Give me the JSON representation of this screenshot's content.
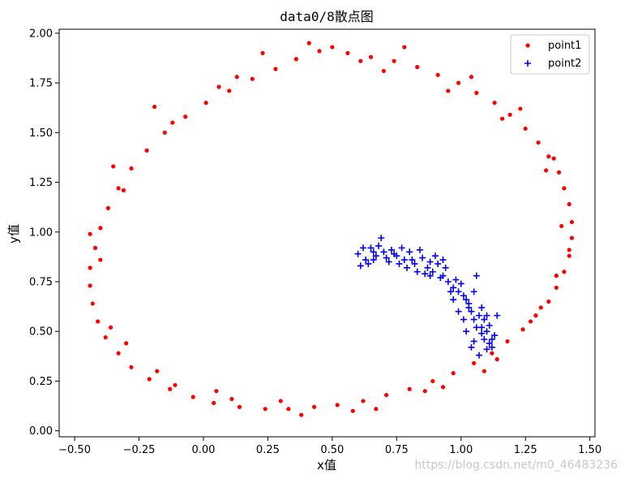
{
  "chart_data": {
    "type": "scatter",
    "title": "data0/8散点图",
    "xlabel": "x值",
    "ylabel": "y值",
    "xlim": [
      -0.56,
      1.52
    ],
    "ylim": [
      -0.03,
      2.02
    ],
    "xticks": [
      -0.5,
      -0.25,
      0.0,
      0.25,
      0.5,
      0.75,
      1.0,
      1.25,
      1.5
    ],
    "xtick_labels": [
      "−0.50",
      "−0.25",
      "0.00",
      "0.25",
      "0.50",
      "0.75",
      "1.00",
      "1.25",
      "1.50"
    ],
    "yticks": [
      0.0,
      0.25,
      0.5,
      0.75,
      1.0,
      1.25,
      1.5,
      1.75,
      2.0
    ],
    "ytick_labels": [
      "0.00",
      "0.25",
      "0.50",
      "0.75",
      "1.00",
      "1.25",
      "1.50",
      "1.75",
      "2.00"
    ],
    "grid": false,
    "legend_position": "top-right",
    "series": [
      {
        "name": "point1",
        "marker": "circle",
        "color": "#ff0000",
        "points": [
          [
            0.45,
            1.91
          ],
          [
            0.56,
            1.9
          ],
          [
            0.65,
            1.88
          ],
          [
            0.74,
            1.86
          ],
          [
            0.83,
            1.83
          ],
          [
            0.91,
            1.79
          ],
          [
            0.99,
            1.75
          ],
          [
            1.06,
            1.7
          ],
          [
            1.13,
            1.65
          ],
          [
            1.19,
            1.59
          ],
          [
            1.25,
            1.52
          ],
          [
            1.3,
            1.45
          ],
          [
            1.34,
            1.38
          ],
          [
            1.38,
            1.3
          ],
          [
            1.4,
            1.22
          ],
          [
            1.42,
            1.14
          ],
          [
            1.43,
            1.05
          ],
          [
            1.43,
            0.97
          ],
          [
            1.42,
            0.88
          ],
          [
            1.4,
            0.8
          ],
          [
            1.37,
            0.72
          ],
          [
            1.34,
            0.65
          ],
          [
            1.29,
            0.58
          ],
          [
            1.24,
            0.51
          ],
          [
            1.18,
            0.45
          ],
          [
            1.12,
            0.39
          ],
          [
            1.05,
            0.34
          ],
          [
            0.97,
            0.29
          ],
          [
            0.89,
            0.25
          ],
          [
            0.8,
            0.21
          ],
          [
            0.71,
            0.18
          ],
          [
            0.62,
            0.15
          ],
          [
            0.52,
            0.13
          ],
          [
            0.43,
            0.12
          ],
          [
            0.33,
            0.11
          ],
          [
            0.24,
            0.11
          ],
          [
            0.14,
            0.12
          ],
          [
            0.04,
            0.14
          ],
          [
            -0.04,
            0.17
          ],
          [
            -0.13,
            0.21
          ],
          [
            -0.21,
            0.26
          ],
          [
            -0.28,
            0.32
          ],
          [
            -0.33,
            0.39
          ],
          [
            -0.38,
            0.47
          ],
          [
            -0.41,
            0.55
          ],
          [
            -0.43,
            0.64
          ],
          [
            -0.44,
            0.73
          ],
          [
            -0.44,
            0.82
          ],
          [
            -0.42,
            0.92
          ],
          [
            -0.4,
            1.02
          ],
          [
            -0.37,
            1.12
          ],
          [
            -0.33,
            1.22
          ],
          [
            -0.28,
            1.32
          ],
          [
            -0.22,
            1.41
          ],
          [
            -0.15,
            1.5
          ],
          [
            -0.07,
            1.58
          ],
          [
            0.01,
            1.65
          ],
          [
            0.1,
            1.71
          ],
          [
            0.19,
            1.77
          ],
          [
            0.28,
            1.82
          ],
          [
            0.36,
            1.87
          ],
          [
            0.5,
            1.93
          ],
          [
            0.7,
            1.81
          ],
          [
            0.95,
            1.71
          ],
          [
            1.16,
            1.57
          ],
          [
            1.33,
            1.31
          ],
          [
            1.39,
            1.03
          ],
          [
            1.37,
            0.78
          ],
          [
            1.27,
            0.55
          ],
          [
            1.09,
            0.3
          ],
          [
            0.86,
            0.2
          ],
          [
            0.58,
            0.1
          ],
          [
            0.3,
            0.15
          ],
          [
            0.05,
            0.2
          ],
          [
            -0.18,
            0.3
          ],
          [
            -0.36,
            0.52
          ],
          [
            -0.4,
            0.86
          ],
          [
            -0.31,
            1.21
          ],
          [
            -0.12,
            1.55
          ],
          [
            0.13,
            1.78
          ],
          [
            0.41,
            1.95
          ],
          [
            0.78,
            1.93
          ],
          [
            1.04,
            1.78
          ],
          [
            1.23,
            1.62
          ],
          [
            1.36,
            1.37
          ],
          [
            1.42,
            0.91
          ],
          [
            1.31,
            0.62
          ],
          [
            1.14,
            0.36
          ],
          [
            0.93,
            0.22
          ],
          [
            0.67,
            0.11
          ],
          [
            0.38,
            0.08
          ],
          [
            0.11,
            0.16
          ],
          [
            -0.11,
            0.23
          ],
          [
            -0.3,
            0.44
          ],
          [
            -0.44,
            0.99
          ],
          [
            -0.35,
            1.33
          ],
          [
            -0.19,
            1.63
          ],
          [
            0.06,
            1.73
          ],
          [
            0.23,
            1.9
          ],
          [
            0.61,
            1.86
          ]
        ]
      },
      {
        "name": "point2",
        "marker": "plus",
        "color": "#0000ff",
        "points": [
          [
            0.6,
            0.89
          ],
          [
            0.63,
            0.86
          ],
          [
            0.65,
            0.92
          ],
          [
            0.67,
            0.88
          ],
          [
            0.7,
            0.9
          ],
          [
            0.72,
            0.85
          ],
          [
            0.75,
            0.88
          ],
          [
            0.78,
            0.86
          ],
          [
            0.8,
            0.9
          ],
          [
            0.82,
            0.84
          ],
          [
            0.85,
            0.87
          ],
          [
            0.87,
            0.82
          ],
          [
            0.89,
            0.8
          ],
          [
            0.91,
            0.84
          ],
          [
            0.93,
            0.78
          ],
          [
            0.95,
            0.75
          ],
          [
            0.97,
            0.72
          ],
          [
            0.99,
            0.7
          ],
          [
            1.01,
            0.68
          ],
          [
            1.03,
            0.64
          ],
          [
            1.04,
            0.6
          ],
          [
            1.05,
            0.56
          ],
          [
            1.06,
            0.52
          ],
          [
            1.08,
            0.49
          ],
          [
            1.09,
            0.46
          ],
          [
            1.11,
            0.44
          ],
          [
            1.12,
            0.42
          ],
          [
            1.1,
            0.5
          ],
          [
            1.07,
            0.58
          ],
          [
            1.02,
            0.66
          ],
          [
            0.98,
            0.76
          ],
          [
            0.88,
            0.85
          ],
          [
            0.76,
            0.84
          ],
          [
            0.66,
            0.9
          ],
          [
            0.62,
            0.92
          ],
          [
            0.69,
            0.97
          ],
          [
            0.73,
            0.91
          ],
          [
            0.84,
            0.91
          ],
          [
            0.9,
            0.88
          ],
          [
            0.94,
            0.82
          ],
          [
            1.0,
            0.74
          ],
          [
            1.05,
            0.7
          ],
          [
            1.04,
            0.42
          ],
          [
            1.07,
            0.38
          ],
          [
            1.1,
            0.41
          ],
          [
            1.13,
            0.48
          ],
          [
            1.14,
            0.58
          ],
          [
            1.08,
            0.62
          ],
          [
            1.06,
            0.78
          ],
          [
            1.02,
            0.5
          ],
          [
            0.97,
            0.66
          ],
          [
            0.86,
            0.79
          ],
          [
            0.79,
            0.82
          ],
          [
            0.71,
            0.87
          ],
          [
            0.64,
            0.84
          ],
          [
            0.61,
            0.83
          ],
          [
            0.68,
            0.93
          ],
          [
            0.74,
            0.89
          ],
          [
            0.81,
            0.86
          ],
          [
            0.92,
            0.77
          ],
          [
            0.96,
            0.7
          ],
          [
            1.03,
            0.62
          ],
          [
            1.11,
            0.53
          ],
          [
            1.09,
            0.56
          ],
          [
            1.12,
            0.46
          ],
          [
            1.01,
            0.56
          ],
          [
            0.99,
            0.6
          ],
          [
            1.05,
            0.45
          ],
          [
            1.08,
            0.52
          ],
          [
            1.1,
            0.58
          ],
          [
            0.83,
            0.8
          ],
          [
            0.88,
            0.78
          ],
          [
            0.93,
            0.86
          ],
          [
            0.77,
            0.92
          ],
          [
            0.66,
            0.86
          ]
        ]
      }
    ]
  },
  "watermark_text": "https://blog.csdn.net/m0_46483236"
}
